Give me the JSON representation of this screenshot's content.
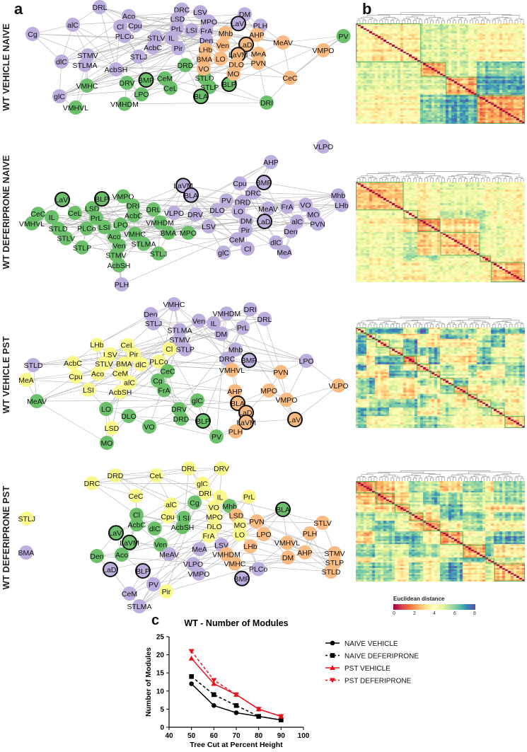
{
  "panel_labels": {
    "a": "a",
    "b": "b",
    "c": "c"
  },
  "module_colors": {
    "P": "#bcaedd",
    "G": "#6cc06c",
    "O": "#f9bb82",
    "Y": "#fcf98c"
  },
  "hub_ring_color": "#111111",
  "networks": [
    {
      "row_label": "WT VEHICLE NAIVE",
      "nodes": [
        {
          "n": "DRL",
          "m": "P"
        },
        {
          "n": "alC",
          "m": "P"
        },
        {
          "n": "Cg",
          "m": "P"
        },
        {
          "n": "Aco",
          "m": "P"
        },
        {
          "n": "Cl",
          "m": "P"
        },
        {
          "n": "Cpu",
          "m": "P"
        },
        {
          "n": "PLCo",
          "m": "P"
        },
        {
          "n": "DRC",
          "m": "P"
        },
        {
          "n": "LSD",
          "m": "P"
        },
        {
          "n": "LSV",
          "m": "P"
        },
        {
          "n": "MPO",
          "m": "P"
        },
        {
          "n": "PrL",
          "m": "P"
        },
        {
          "n": "LSI",
          "m": "P"
        },
        {
          "n": "FrA",
          "m": "P"
        },
        {
          "n": "Den",
          "m": "P"
        },
        {
          "n": "IL",
          "m": "P"
        },
        {
          "n": "STLV",
          "m": "P"
        },
        {
          "n": "AcbC",
          "m": "P"
        },
        {
          "n": "Pir",
          "m": "P"
        },
        {
          "n": "STLJ",
          "m": "P"
        },
        {
          "n": "STMV",
          "m": "P"
        },
        {
          "n": "STLMA",
          "m": "P"
        },
        {
          "n": "dlC",
          "m": "P"
        },
        {
          "n": "AcbSH",
          "m": "P"
        },
        {
          "n": "VMHC",
          "m": "G"
        },
        {
          "n": "glC",
          "m": "P"
        },
        {
          "n": "VMHVL",
          "m": "G"
        },
        {
          "n": "VMHDM",
          "m": "G"
        },
        {
          "n": "DRV",
          "m": "G"
        },
        {
          "n": "BMP",
          "m": "G",
          "h": true
        },
        {
          "n": "LPO",
          "m": "G"
        },
        {
          "n": "CeM",
          "m": "G"
        },
        {
          "n": "CeL",
          "m": "G"
        },
        {
          "n": "DRD",
          "m": "G"
        },
        {
          "n": "STLD",
          "m": "G"
        },
        {
          "n": "STLP",
          "m": "G"
        },
        {
          "n": "BLP",
          "m": "G",
          "h": true
        },
        {
          "n": "BLA",
          "m": "G",
          "h": true
        },
        {
          "n": "DRI",
          "m": "G"
        },
        {
          "n": "Mhb",
          "m": "O"
        },
        {
          "n": "DM",
          "m": "P"
        },
        {
          "n": "LaVl",
          "m": "P",
          "h": true
        },
        {
          "n": "PLH",
          "m": "P"
        },
        {
          "n": "AHP",
          "m": "O"
        },
        {
          "n": "LaDl",
          "m": "O",
          "h": true
        },
        {
          "n": "MeAV",
          "m": "O"
        },
        {
          "n": "PV",
          "m": "G"
        },
        {
          "n": "VMPO",
          "m": "O"
        },
        {
          "n": "Ven",
          "m": "O"
        },
        {
          "n": "LHb",
          "m": "O"
        },
        {
          "n": "LO",
          "m": "O"
        },
        {
          "n": "LaVM",
          "m": "O",
          "h": true
        },
        {
          "n": "MeA",
          "m": "O"
        },
        {
          "n": "PVN",
          "m": "O"
        },
        {
          "n": "DLO",
          "m": "O"
        },
        {
          "n": "BMA",
          "m": "O"
        },
        {
          "n": "VO",
          "m": "O"
        },
        {
          "n": "MO",
          "m": "O"
        },
        {
          "n": "CeC",
          "m": "O"
        },
        {
          "n": "VLPO",
          "m": "P"
        }
      ]
    },
    {
      "row_label": "WT DEFERIPRONE NAIVE",
      "nodes": [
        {
          "n": "AHP",
          "m": "P"
        },
        {
          "n": "BMP",
          "m": "P",
          "h": true
        },
        {
          "n": "LaVM",
          "m": "P",
          "h": true
        },
        {
          "n": "BLA",
          "m": "P",
          "h": true
        },
        {
          "n": "Cpu",
          "m": "P"
        },
        {
          "n": "DRC",
          "m": "P"
        },
        {
          "n": "Mhb",
          "m": "P"
        },
        {
          "n": "LHb",
          "m": "P"
        },
        {
          "n": "PV",
          "m": "P"
        },
        {
          "n": "DLO",
          "m": "P"
        },
        {
          "n": "MeAV",
          "m": "P"
        },
        {
          "n": "FrA",
          "m": "P"
        },
        {
          "n": "VO",
          "m": "P"
        },
        {
          "n": "MO",
          "m": "P"
        },
        {
          "n": "DRD",
          "m": "P"
        },
        {
          "n": "LO",
          "m": "P"
        },
        {
          "n": "DM",
          "m": "P"
        },
        {
          "n": "PVN",
          "m": "P"
        },
        {
          "n": "LaDl",
          "m": "P",
          "h": true
        },
        {
          "n": "alC",
          "m": "P"
        },
        {
          "n": "Den",
          "m": "P"
        },
        {
          "n": "Pir",
          "m": "P"
        },
        {
          "n": "CeM",
          "m": "P"
        },
        {
          "n": "DRV",
          "m": "P"
        },
        {
          "n": "VLPO",
          "m": "P"
        },
        {
          "n": "LSV",
          "m": "P"
        },
        {
          "n": "Cl",
          "m": "P"
        },
        {
          "n": "dlC",
          "m": "P"
        },
        {
          "n": "MeA",
          "m": "P"
        },
        {
          "n": "glC",
          "m": "P"
        },
        {
          "n": "LaVl",
          "m": "G",
          "h": true
        },
        {
          "n": "CeC",
          "m": "G"
        },
        {
          "n": "IL",
          "m": "G"
        },
        {
          "n": "VMHVL",
          "m": "G"
        },
        {
          "n": "CeL",
          "m": "G"
        },
        {
          "n": "LSD",
          "m": "G"
        },
        {
          "n": "BLP",
          "m": "G",
          "h": true
        },
        {
          "n": "PrL",
          "m": "G"
        },
        {
          "n": "LSI",
          "m": "G"
        },
        {
          "n": "VMPO",
          "m": "G"
        },
        {
          "n": "DRI",
          "m": "G"
        },
        {
          "n": "DRL",
          "m": "G"
        },
        {
          "n": "AcbC",
          "m": "G"
        },
        {
          "n": "VMHDM",
          "m": "G"
        },
        {
          "n": "LPO",
          "m": "G"
        },
        {
          "n": "PLCo",
          "m": "G"
        },
        {
          "n": "Ven",
          "m": "G"
        },
        {
          "n": "VMHC",
          "m": "G"
        },
        {
          "n": "STLD",
          "m": "G"
        },
        {
          "n": "STLV",
          "m": "G"
        },
        {
          "n": "Aco",
          "m": "G"
        },
        {
          "n": "STMV",
          "m": "G"
        },
        {
          "n": "STLP",
          "m": "G"
        },
        {
          "n": "BMA",
          "m": "G"
        },
        {
          "n": "MPO",
          "m": "G"
        },
        {
          "n": "STLMA",
          "m": "G"
        },
        {
          "n": "STLJ",
          "m": "G"
        },
        {
          "n": "AcbSH",
          "m": "G"
        },
        {
          "n": "PLH",
          "m": "P"
        }
      ]
    },
    {
      "row_label": "WT VEHICLE PST",
      "nodes": [
        {
          "n": "VMHC",
          "m": "P"
        },
        {
          "n": "Den",
          "m": "P"
        },
        {
          "n": "STLJ",
          "m": "P"
        },
        {
          "n": "Ven",
          "m": "P"
        },
        {
          "n": "IL",
          "m": "P"
        },
        {
          "n": "VMHDM",
          "m": "P"
        },
        {
          "n": "DRI",
          "m": "P"
        },
        {
          "n": "DRL",
          "m": "P"
        },
        {
          "n": "PrL",
          "m": "P"
        },
        {
          "n": "DM",
          "m": "P"
        },
        {
          "n": "STLMA",
          "m": "P"
        },
        {
          "n": "STMV",
          "m": "P"
        },
        {
          "n": "STLP",
          "m": "P"
        },
        {
          "n": "Mhb",
          "m": "P"
        },
        {
          "n": "DRC",
          "m": "P"
        },
        {
          "n": "BMP",
          "m": "P",
          "h": true
        },
        {
          "n": "LPO",
          "m": "P"
        },
        {
          "n": "STLD",
          "m": "P"
        },
        {
          "n": "LHb",
          "m": "Y"
        },
        {
          "n": "LSV",
          "m": "Y"
        },
        {
          "n": "CeL",
          "m": "Y"
        },
        {
          "n": "Pir",
          "m": "Y"
        },
        {
          "n": "Cl",
          "m": "Y"
        },
        {
          "n": "dlC",
          "m": "Y"
        },
        {
          "n": "PLCo",
          "m": "Y"
        },
        {
          "n": "AcbC",
          "m": "Y"
        },
        {
          "n": "STLV",
          "m": "Y"
        },
        {
          "n": "BMA",
          "m": "Y"
        },
        {
          "n": "Aco",
          "m": "Y"
        },
        {
          "n": "Cpu",
          "m": "Y"
        },
        {
          "n": "CeM",
          "m": "Y"
        },
        {
          "n": "MeA",
          "m": "Y"
        },
        {
          "n": "AcbSH",
          "m": "Y"
        },
        {
          "n": "alC",
          "m": "Y"
        },
        {
          "n": "LSI",
          "m": "Y"
        },
        {
          "n": "LSD",
          "m": "Y"
        },
        {
          "n": "CeC",
          "m": "G"
        },
        {
          "n": "Cg",
          "m": "G"
        },
        {
          "n": "FrA",
          "m": "G"
        },
        {
          "n": "MeAV",
          "m": "G"
        },
        {
          "n": "glC",
          "m": "G"
        },
        {
          "n": "LO",
          "m": "G"
        },
        {
          "n": "DLO",
          "m": "G"
        },
        {
          "n": "DRV",
          "m": "G"
        },
        {
          "n": "DRD",
          "m": "G"
        },
        {
          "n": "BLP",
          "m": "G",
          "h": true
        },
        {
          "n": "VO",
          "m": "G"
        },
        {
          "n": "MO",
          "m": "G"
        },
        {
          "n": "PV",
          "m": "G"
        },
        {
          "n": "VMHVL",
          "m": "O"
        },
        {
          "n": "PVN",
          "m": "O"
        },
        {
          "n": "AHP",
          "m": "O"
        },
        {
          "n": "MPO",
          "m": "O"
        },
        {
          "n": "VMPO",
          "m": "O"
        },
        {
          "n": "VLPO",
          "m": "O"
        },
        {
          "n": "BLA",
          "m": "O",
          "h": true
        },
        {
          "n": "LaDl",
          "m": "O",
          "h": true
        },
        {
          "n": "LaVM",
          "m": "O",
          "h": true
        },
        {
          "n": "LaVl",
          "m": "O",
          "h": true
        },
        {
          "n": "PLH",
          "m": "O"
        }
      ]
    },
    {
      "row_label": "WT DEFERIPRONE PST",
      "nodes": [
        {
          "n": "DRD",
          "m": "Y"
        },
        {
          "n": "DRC",
          "m": "Y"
        },
        {
          "n": "CeL",
          "m": "Y"
        },
        {
          "n": "DRL",
          "m": "Y"
        },
        {
          "n": "DRV",
          "m": "Y"
        },
        {
          "n": "glC",
          "m": "Y"
        },
        {
          "n": "DRI",
          "m": "Y"
        },
        {
          "n": "CeC",
          "m": "Y"
        },
        {
          "n": "alC",
          "m": "Y"
        },
        {
          "n": "Cg",
          "m": "G"
        },
        {
          "n": "IL",
          "m": "Y"
        },
        {
          "n": "PrL",
          "m": "Y"
        },
        {
          "n": "STLJ",
          "m": "Y"
        },
        {
          "n": "Cl",
          "m": "G"
        },
        {
          "n": "AcbC",
          "m": "G"
        },
        {
          "n": "Cpu",
          "m": "Y"
        },
        {
          "n": "LSI",
          "m": "G"
        },
        {
          "n": "AcbSH",
          "m": "G"
        },
        {
          "n": "dlC",
          "m": "G"
        },
        {
          "n": "VO",
          "m": "Y"
        },
        {
          "n": "Mhb",
          "m": "G"
        },
        {
          "n": "LSD",
          "m": "O"
        },
        {
          "n": "MPO",
          "m": "Y"
        },
        {
          "n": "MO",
          "m": "Y"
        },
        {
          "n": "PVN",
          "m": "O"
        },
        {
          "n": "DLO",
          "m": "Y"
        },
        {
          "n": "LO",
          "m": "Y"
        },
        {
          "n": "FrA",
          "m": "Y"
        },
        {
          "n": "LPO",
          "m": "O"
        },
        {
          "n": "BLA",
          "m": "G",
          "h": true
        },
        {
          "n": "STLV",
          "m": "O"
        },
        {
          "n": "PLH",
          "m": "O"
        },
        {
          "n": "LaVl",
          "m": "G",
          "h": true
        },
        {
          "n": "LaVM",
          "m": "G",
          "h": true
        },
        {
          "n": "BMA",
          "m": "P"
        },
        {
          "n": "Den",
          "m": "G"
        },
        {
          "n": "Aco",
          "m": "G"
        },
        {
          "n": "Ven",
          "m": "G"
        },
        {
          "n": "MeAV",
          "m": "P"
        },
        {
          "n": "LaDl",
          "m": "P",
          "h": true
        },
        {
          "n": "BLP",
          "m": "P",
          "h": true
        },
        {
          "n": "PV",
          "m": "P"
        },
        {
          "n": "Pir",
          "m": "Y"
        },
        {
          "n": "CeM",
          "m": "P"
        },
        {
          "n": "STLMA",
          "m": "P"
        },
        {
          "n": "MeA",
          "m": "P"
        },
        {
          "n": "LSV",
          "m": "P"
        },
        {
          "n": "VMHC",
          "m": "O"
        },
        {
          "n": "LHb",
          "m": "O"
        },
        {
          "n": "VMHDM",
          "m": "O"
        },
        {
          "n": "VLPO",
          "m": "P"
        },
        {
          "n": "VMPO",
          "m": "P"
        },
        {
          "n": "PLCo",
          "m": "P"
        },
        {
          "n": "BMP",
          "m": "P",
          "h": true
        },
        {
          "n": "VMHVL",
          "m": "O"
        },
        {
          "n": "AHP",
          "m": "O"
        },
        {
          "n": "DM",
          "m": "O"
        },
        {
          "n": "STMV",
          "m": "O"
        },
        {
          "n": "STLP",
          "m": "O"
        },
        {
          "n": "STLD",
          "m": "O"
        }
      ]
    }
  ],
  "heatmap_colorbar": {
    "title": "Euclidean distance",
    "ticks": [
      "0",
      "2",
      "4",
      "6",
      "8"
    ],
    "range": [
      0,
      8
    ]
  },
  "chart_data": {
    "type": "line",
    "title": "WT - Number of Modules",
    "xlabel": "Tree Cut at Percent Height",
    "ylabel": "Number of Modules",
    "x": [
      50,
      60,
      70,
      80,
      90
    ],
    "xlim": [
      40,
      100
    ],
    "ylim": [
      0,
      25
    ],
    "x_ticks": [
      "40",
      "50",
      "60",
      "70",
      "80",
      "90",
      "100"
    ],
    "y_ticks": [
      "0",
      "5",
      "10",
      "15",
      "20",
      "25"
    ],
    "legend_position": "right",
    "series": [
      {
        "name": "NAIVE VEHICLE",
        "values": [
          12,
          6,
          4,
          3,
          2
        ],
        "color": "#000000",
        "dash": false,
        "marker": "circle"
      },
      {
        "name": "NAIVE DEFERIPRONE",
        "values": [
          14,
          9,
          6,
          3,
          2
        ],
        "color": "#000000",
        "dash": true,
        "marker": "square"
      },
      {
        "name": "PST VEHICLE",
        "values": [
          19,
          12,
          9,
          5,
          3
        ],
        "color": "#e8141b",
        "dash": false,
        "marker": "triangle-up"
      },
      {
        "name": "PST DEFERIPRONE",
        "values": [
          21,
          13,
          9,
          5,
          3
        ],
        "color": "#e8141b",
        "dash": true,
        "marker": "triangle-down"
      }
    ]
  }
}
